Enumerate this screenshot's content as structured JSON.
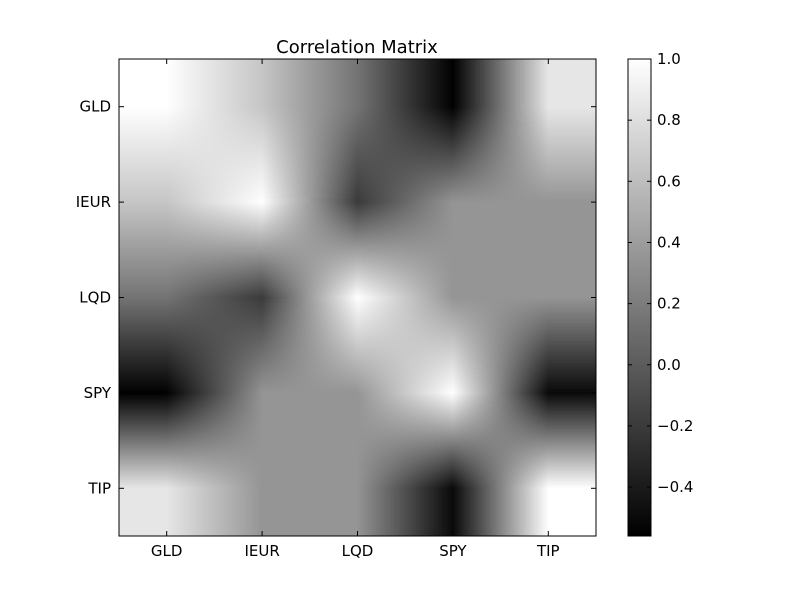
{
  "chart_data": {
    "type": "heatmap",
    "title": "Correlation Matrix",
    "x_categories": [
      "GLD",
      "IEUR",
      "LQD",
      "SPY",
      "TIP"
    ],
    "y_categories": [
      "GLD",
      "IEUR",
      "LQD",
      "SPY",
      "TIP"
    ],
    "matrix": [
      [
        1.0,
        0.65,
        0.15,
        -0.55,
        0.85
      ],
      [
        0.65,
        1.0,
        -0.2,
        0.35,
        0.35
      ],
      [
        0.15,
        -0.2,
        1.0,
        0.35,
        0.35
      ],
      [
        -0.55,
        0.35,
        0.35,
        1.0,
        -0.5
      ],
      [
        0.85,
        0.35,
        0.35,
        -0.5,
        1.0
      ]
    ],
    "interpolation": "bilinear",
    "colormap": "gray",
    "colorbar": {
      "range": [
        -0.56,
        1.0
      ],
      "ticks": [
        1.0,
        0.8,
        0.6,
        0.4,
        0.2,
        0.0,
        -0.2,
        -0.4
      ],
      "tick_labels": [
        "1.0",
        "0.8",
        "0.6",
        "0.4",
        "0.2",
        "0.0",
        "−0.2",
        "−0.4"
      ]
    },
    "xlabel": "",
    "ylabel": ""
  }
}
